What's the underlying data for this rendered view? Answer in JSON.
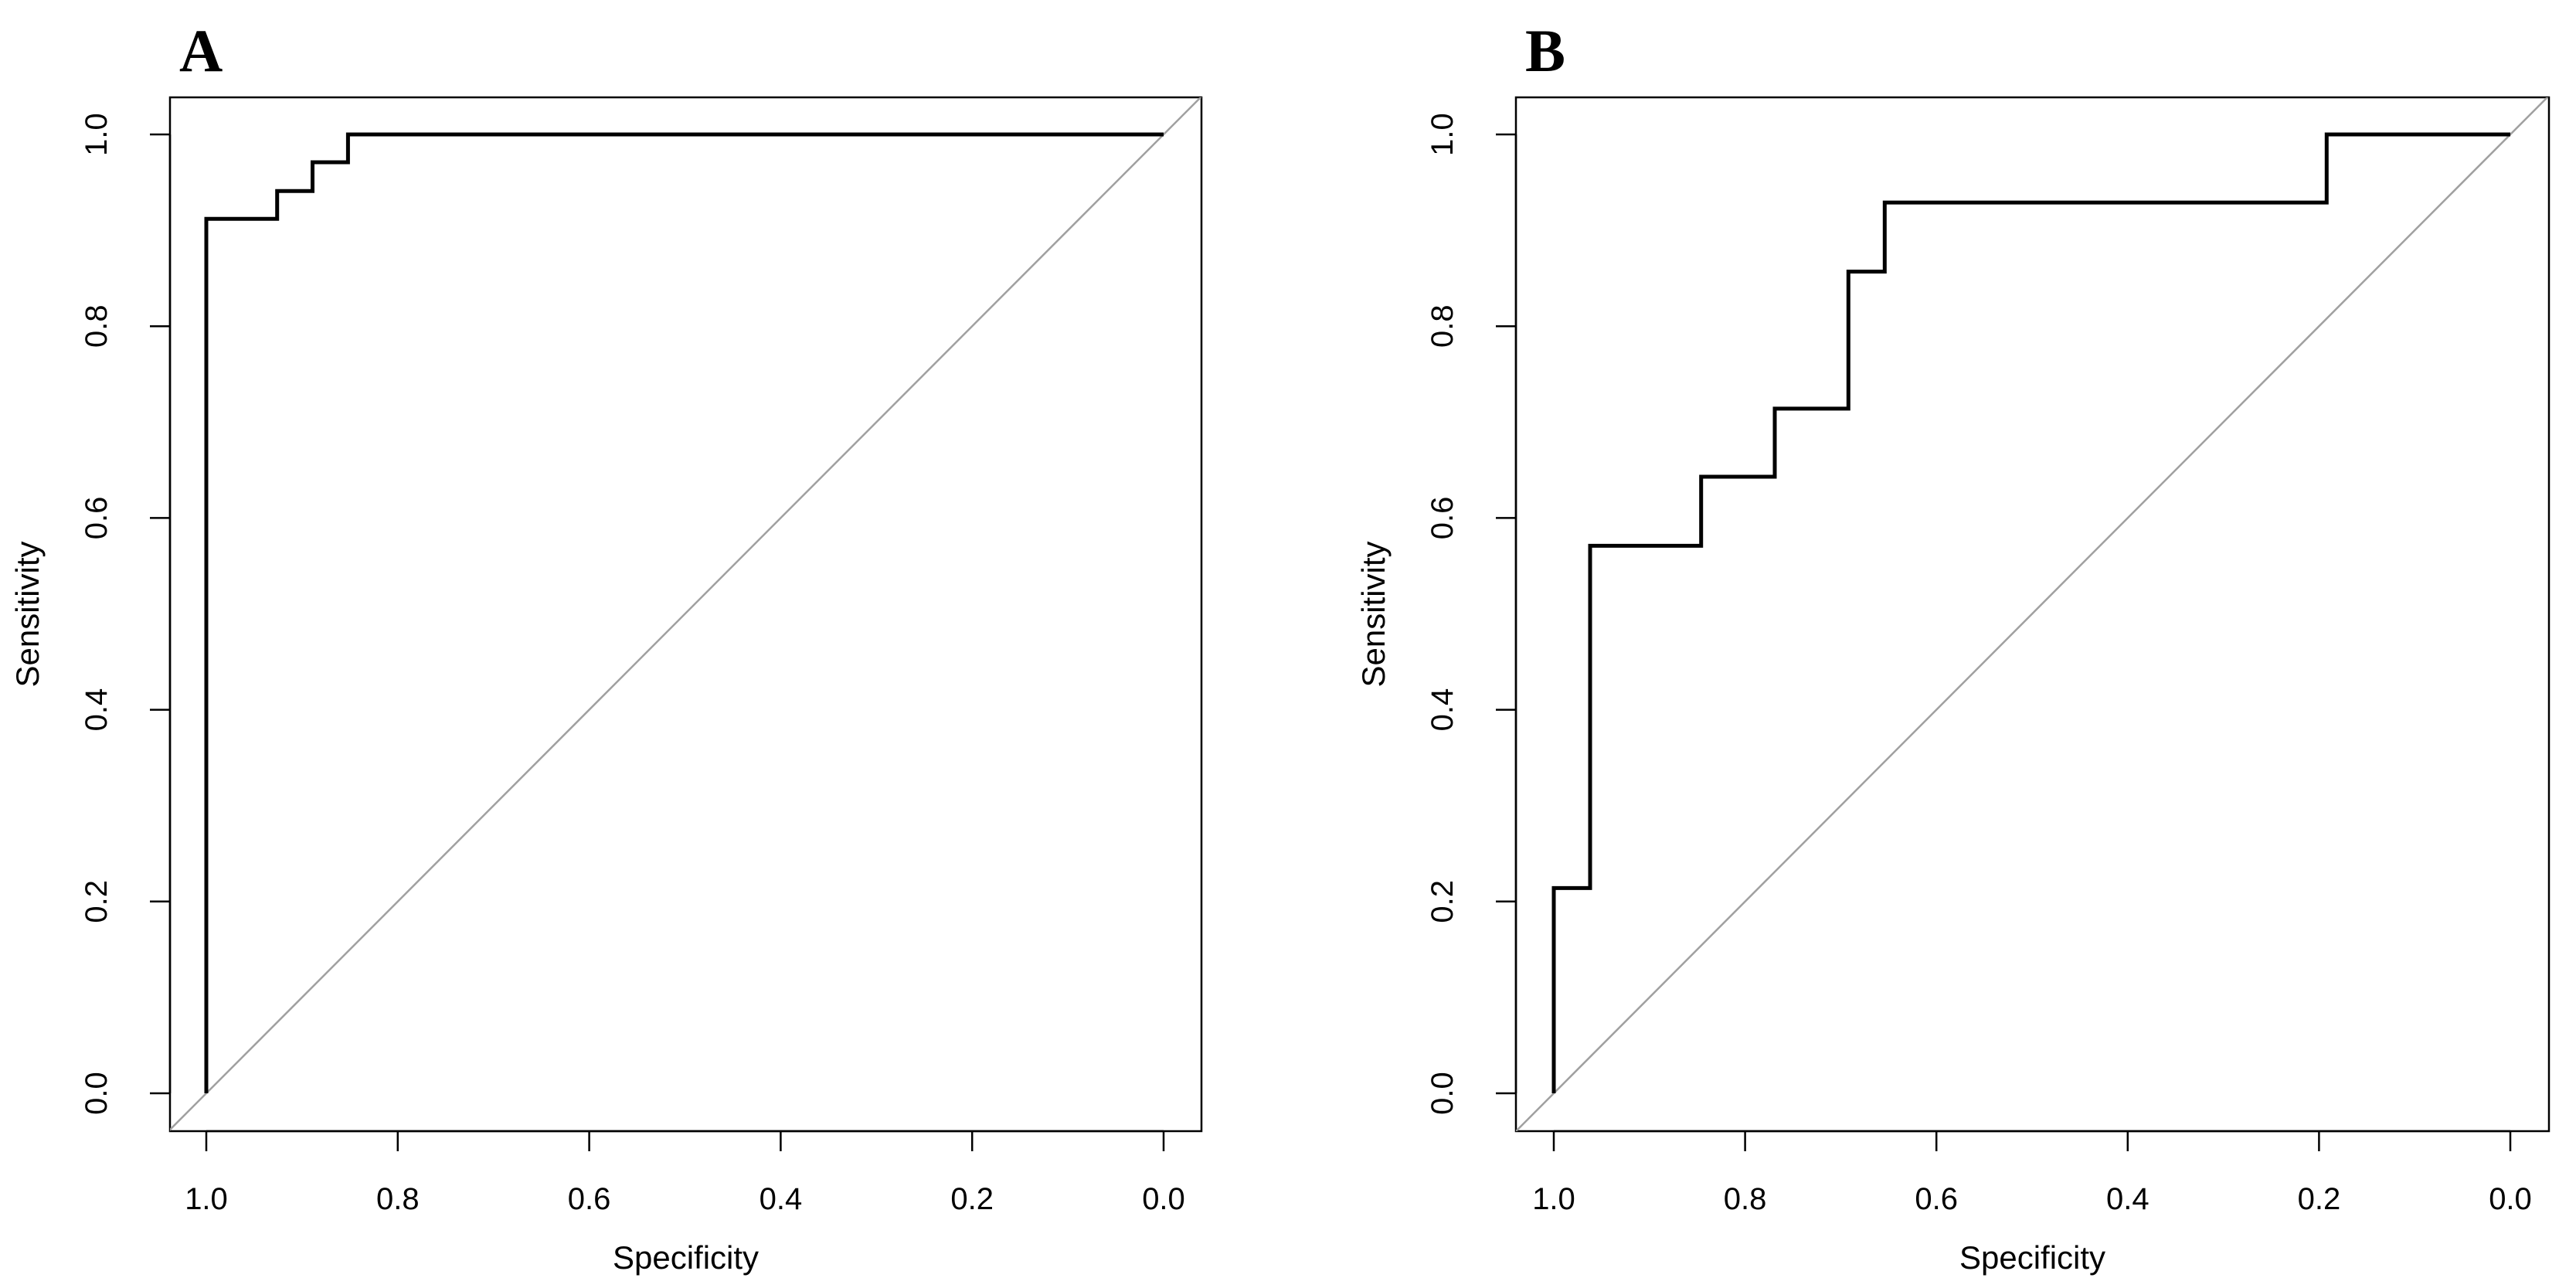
{
  "chart_data": [
    {
      "panel_label": "A",
      "type": "line",
      "xlabel": "Specificity",
      "ylabel": "Sensitivity",
      "xlim": [
        1.0,
        0.0
      ],
      "ylim": [
        0.0,
        1.0
      ],
      "x_reversed": true,
      "x_ticks": [
        "1.0",
        "0.8",
        "0.6",
        "0.4",
        "0.2",
        "0.0"
      ],
      "y_ticks": [
        "0.0",
        "0.2",
        "0.4",
        "0.6",
        "0.8",
        "1.0"
      ],
      "grid": false,
      "reference_line": {
        "from": [
          1.0,
          0.0
        ],
        "to": [
          0.0,
          1.0
        ],
        "color": "#a0a0a0"
      },
      "series": [
        {
          "color": "#000000",
          "points": [
            [
              1.0,
              0.0
            ],
            [
              1.0,
              0.912
            ],
            [
              0.926,
              0.912
            ],
            [
              0.926,
              0.941
            ],
            [
              0.889,
              0.941
            ],
            [
              0.889,
              0.971
            ],
            [
              0.852,
              0.971
            ],
            [
              0.852,
              1.0
            ],
            [
              0.0,
              1.0
            ]
          ]
        }
      ]
    },
    {
      "panel_label": "B",
      "type": "line",
      "xlabel": "Specificity",
      "ylabel": "Sensitivity",
      "xlim": [
        1.0,
        0.0
      ],
      "ylim": [
        0.0,
        1.0
      ],
      "x_reversed": true,
      "x_ticks": [
        "1.0",
        "0.8",
        "0.6",
        "0.4",
        "0.2",
        "0.0"
      ],
      "y_ticks": [
        "0.0",
        "0.2",
        "0.4",
        "0.6",
        "0.8",
        "1.0"
      ],
      "grid": false,
      "reference_line": {
        "from": [
          1.0,
          0.0
        ],
        "to": [
          0.0,
          1.0
        ],
        "color": "#a0a0a0"
      },
      "series": [
        {
          "color": "#000000",
          "points": [
            [
              1.0,
              0.0
            ],
            [
              1.0,
              0.214
            ],
            [
              0.962,
              0.214
            ],
            [
              0.962,
              0.571
            ],
            [
              0.846,
              0.571
            ],
            [
              0.846,
              0.643
            ],
            [
              0.769,
              0.643
            ],
            [
              0.769,
              0.714
            ],
            [
              0.692,
              0.714
            ],
            [
              0.692,
              0.857
            ],
            [
              0.654,
              0.857
            ],
            [
              0.654,
              0.929
            ],
            [
              0.192,
              0.929
            ],
            [
              0.192,
              1.0
            ],
            [
              0.0,
              1.0
            ]
          ]
        }
      ]
    }
  ]
}
